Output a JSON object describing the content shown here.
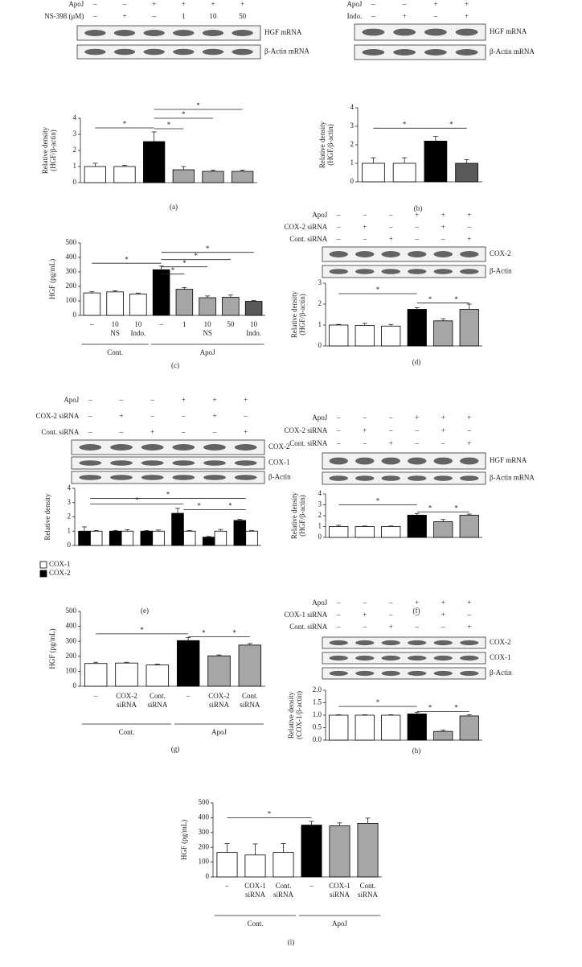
{
  "chart_data": [
    {
      "type": "bar",
      "panel": "(a)",
      "rows": [
        {
          "label": "ApoJ",
          "values": [
            "–",
            "–",
            "+",
            "+",
            "+",
            "+"
          ]
        },
        {
          "label": "NS-398 (μM)",
          "values": [
            "–",
            "+",
            "–",
            "1",
            "10",
            "50"
          ]
        }
      ],
      "blots": [
        "HGF mRNA",
        "β-Actin mRNA"
      ],
      "ylabel": [
        "Relative density",
        "(HGF/β-actin)"
      ],
      "ylim": [
        0,
        4
      ],
      "yticks": [
        0,
        1,
        2,
        3,
        4
      ],
      "series": [
        {
          "values": [
            1.0,
            1.0,
            2.55,
            0.8,
            0.7,
            0.7
          ],
          "errors": [
            0.2,
            0.08,
            0.6,
            0.2,
            0.08,
            0.08
          ],
          "colors": [
            "#ffffff",
            "#ffffff",
            "#000000",
            "#a6a6a6",
            "#a6a6a6",
            "#a6a6a6"
          ]
        }
      ],
      "significance": [
        {
          "from": 0,
          "to": 2,
          "y": 3.4,
          "label": "*"
        },
        {
          "from": 2,
          "to": 3,
          "y": 3.35,
          "label": "*"
        },
        {
          "from": 2,
          "to": 4,
          "y": 4.0,
          "label": "*"
        },
        {
          "from": 2,
          "to": 5,
          "y": 4.55,
          "label": "*"
        }
      ]
    },
    {
      "type": "bar",
      "panel": "(b)",
      "rows": [
        {
          "label": "ApoJ",
          "values": [
            "–",
            "–",
            "+",
            "+"
          ]
        },
        {
          "label": "Indo.",
          "values": [
            "–",
            "+",
            "–",
            "+"
          ]
        }
      ],
      "blots": [
        "HGF mRNA",
        "β-Actin mRNA"
      ],
      "ylabel": [
        "Relative density",
        "(HGF/β-actin)"
      ],
      "ylim": [
        0,
        4
      ],
      "yticks": [
        0,
        1,
        2,
        3,
        4
      ],
      "series": [
        {
          "values": [
            1.0,
            1.0,
            2.2,
            1.0
          ],
          "errors": [
            0.3,
            0.3,
            0.25,
            0.2
          ],
          "colors": [
            "#ffffff",
            "#ffffff",
            "#000000",
            "#595959"
          ]
        }
      ],
      "significance": [
        {
          "from": 0,
          "to": 2,
          "y": 2.9,
          "label": "*"
        },
        {
          "from": 2,
          "to": 3,
          "y": 2.9,
          "label": "*"
        }
      ]
    },
    {
      "type": "bar",
      "panel": "(c)",
      "ylabel": [
        "HGF (pg/mL)"
      ],
      "ylim": [
        0,
        500
      ],
      "yticks": [
        0,
        100,
        200,
        300,
        400,
        500
      ],
      "categories": [
        [
          "–"
        ],
        [
          "10",
          "NS"
        ],
        [
          "10",
          "Indo."
        ],
        [
          "–"
        ],
        [
          "1"
        ],
        [
          "10",
          "NS"
        ],
        [
          "50"
        ],
        [
          "10",
          "Indo."
        ]
      ],
      "groups": [
        {
          "label": "Cont.",
          "from": 0,
          "to": 2
        },
        {
          "label": "ApoJ",
          "from": 3,
          "to": 7
        }
      ],
      "series": [
        {
          "values": [
            155,
            162,
            148,
            315,
            180,
            122,
            125,
            97
          ],
          "errors": [
            8,
            8,
            6,
            25,
            12,
            12,
            15,
            5
          ],
          "colors": [
            "#ffffff",
            "#ffffff",
            "#ffffff",
            "#000000",
            "#a6a6a6",
            "#a6a6a6",
            "#a6a6a6",
            "#595959"
          ]
        }
      ],
      "significance": [
        {
          "from": 0,
          "to": 3,
          "y": 360,
          "label": "*"
        },
        {
          "from": 3,
          "to": 4,
          "y": 285,
          "label": "*"
        },
        {
          "from": 3,
          "to": 5,
          "y": 335,
          "label": "*"
        },
        {
          "from": 3,
          "to": 6,
          "y": 385,
          "label": "*"
        },
        {
          "from": 3,
          "to": 7,
          "y": 435,
          "label": "*"
        }
      ]
    },
    {
      "type": "bar",
      "panel": "(d)",
      "rows": [
        {
          "label": "ApoJ",
          "values": [
            "–",
            "–",
            "–",
            "+",
            "+",
            "+"
          ]
        },
        {
          "label": "COX-2 siRNA",
          "values": [
            "–",
            "+",
            "–",
            "–",
            "+",
            "–"
          ]
        },
        {
          "label": "Cont. siRNA",
          "values": [
            "–",
            "–",
            "+",
            "–",
            "–",
            "+"
          ]
        }
      ],
      "blots": [
        "COX-2",
        "β-Actin"
      ],
      "ylabel": [
        "Relative density",
        "(HGF/β-actin)"
      ],
      "ylim": [
        0,
        3
      ],
      "yticks": [
        0,
        1,
        2,
        3
      ],
      "series": [
        {
          "values": [
            1.0,
            0.98,
            0.95,
            1.75,
            1.2,
            1.75
          ],
          "errors": [
            0.03,
            0.1,
            0.08,
            0.08,
            0.1,
            0.25
          ],
          "colors": [
            "#ffffff",
            "#ffffff",
            "#ffffff",
            "#000000",
            "#a6a6a6",
            "#a6a6a6"
          ]
        }
      ],
      "significance": [
        {
          "from": 0,
          "to": 3,
          "y": 2.5,
          "label": "*"
        },
        {
          "from": 3,
          "to": 4,
          "y": 2.05,
          "label": "*"
        },
        {
          "from": 4,
          "to": 5,
          "y": 2.05,
          "label": "*"
        }
      ]
    },
    {
      "type": "bar",
      "panel": "(e)",
      "rows": [
        {
          "label": "ApoJ",
          "values": [
            "–",
            "–",
            "–",
            "+",
            "+",
            "+"
          ]
        },
        {
          "label": "COX-2 siRNA",
          "values": [
            "–",
            "+",
            "–",
            "–",
            "+",
            "–"
          ]
        },
        {
          "label": "Cont. siRNA",
          "values": [
            "–",
            "–",
            "+",
            "–",
            "–",
            "+"
          ]
        }
      ],
      "blots": [
        "COX-2",
        "COX-1",
        "β-Actin"
      ],
      "ylabel": [
        "Relative density"
      ],
      "ylim": [
        0,
        4
      ],
      "yticks": [
        0,
        1,
        2,
        3,
        4
      ],
      "series": [
        {
          "name": "COX-1",
          "color": "#ffffff",
          "values": [
            1.0,
            1.0,
            1.0,
            1.0,
            1.0,
            1.0
          ],
          "errors": [
            0.05,
            0.1,
            0.08,
            0.05,
            0.12,
            0.05
          ]
        },
        {
          "name": "COX-2",
          "color": "#000000",
          "values": [
            1.0,
            1.0,
            1.0,
            2.25,
            0.58,
            1.75
          ],
          "errors": [
            0.3,
            0.05,
            0.05,
            0.35,
            0.05,
            0.08
          ]
        }
      ],
      "significance": [
        {
          "from": 0,
          "to": 3,
          "y": 2.9,
          "label": "*"
        },
        {
          "from": 0,
          "to": 5,
          "y": 3.3,
          "label": "*"
        },
        {
          "from": 3,
          "to": 4,
          "y": 2.5,
          "label": "*"
        },
        {
          "from": 4,
          "to": 5,
          "y": 2.5,
          "label": "*"
        }
      ]
    },
    {
      "type": "bar",
      "panel": "(f)",
      "rows": [
        {
          "label": "ApoJ",
          "values": [
            "–",
            "–",
            "–",
            "+",
            "+",
            "+"
          ]
        },
        {
          "label": "COX-2 siRNA",
          "values": [
            "–",
            "+",
            "–",
            "–",
            "+",
            "–"
          ]
        },
        {
          "label": "Cont. siRNA",
          "values": [
            "–",
            "–",
            "+",
            "–",
            "–",
            "+"
          ]
        }
      ],
      "blots": [
        "HGF mRNA",
        "β-Actin mRNA"
      ],
      "ylabel": [
        "Relative density",
        "(HGF/β-actin)"
      ],
      "ylim": [
        0,
        4
      ],
      "yticks": [
        0,
        1,
        2,
        3,
        4
      ],
      "series": [
        {
          "values": [
            1.0,
            1.0,
            1.0,
            2.05,
            1.45,
            2.05
          ],
          "errors": [
            0.12,
            0.05,
            0.05,
            0.15,
            0.2,
            0.1
          ],
          "colors": [
            "#ffffff",
            "#ffffff",
            "#ffffff",
            "#000000",
            "#a6a6a6",
            "#a6a6a6"
          ]
        }
      ],
      "significance": [
        {
          "from": 0,
          "to": 3,
          "y": 3.0,
          "label": "*"
        },
        {
          "from": 3,
          "to": 4,
          "y": 2.35,
          "label": "*"
        },
        {
          "from": 4,
          "to": 5,
          "y": 2.35,
          "label": "*"
        }
      ]
    },
    {
      "type": "bar",
      "panel": "(g)",
      "ylabel": [
        "HGF (pg/mL)"
      ],
      "ylim": [
        0,
        500
      ],
      "yticks": [
        0,
        100,
        200,
        300,
        400,
        500
      ],
      "categories": [
        [
          "–"
        ],
        [
          "COX-2",
          "siRNA"
        ],
        [
          "Cont.",
          "siRNA"
        ],
        [
          "–"
        ],
        [
          "COX-2",
          "siRNA"
        ],
        [
          "Cont.",
          "siRNA"
        ]
      ],
      "groups": [
        {
          "label": "Cont.",
          "from": 0,
          "to": 2
        },
        {
          "label": "ApoJ",
          "from": 3,
          "to": 5
        }
      ],
      "series": [
        {
          "values": [
            152,
            155,
            142,
            305,
            203,
            275
          ],
          "errors": [
            8,
            5,
            5,
            20,
            6,
            10
          ],
          "colors": [
            "#ffffff",
            "#ffffff",
            "#ffffff",
            "#000000",
            "#a6a6a6",
            "#a6a6a6"
          ]
        }
      ],
      "significance": [
        {
          "from": 0,
          "to": 3,
          "y": 350,
          "label": "*"
        },
        {
          "from": 3,
          "to": 4,
          "y": 330,
          "label": "*"
        },
        {
          "from": 4,
          "to": 5,
          "y": 330,
          "label": "*"
        }
      ]
    },
    {
      "type": "bar",
      "panel": "(h)",
      "rows": [
        {
          "label": "ApoJ",
          "values": [
            "–",
            "–",
            "–",
            "+",
            "+",
            "+"
          ]
        },
        {
          "label": "COX-1 siRNA",
          "values": [
            "–",
            "+",
            "–",
            "–",
            "+",
            "–"
          ]
        },
        {
          "label": "Cont. siRNA",
          "values": [
            "–",
            "–",
            "+",
            "–",
            "–",
            "+"
          ]
        }
      ],
      "blots": [
        "COX-2",
        "COX-1",
        "β-Actin"
      ],
      "ylabel": [
        "Relative density",
        "(COX-1/β-actin)"
      ],
      "ylim": [
        0,
        2
      ],
      "yticks": [
        {
          "value": 0,
          "label": "0.0"
        },
        {
          "value": 0.5,
          "label": "0.5"
        },
        {
          "value": 1,
          "label": "1.0"
        },
        {
          "value": 1.5,
          "label": "1.5"
        },
        {
          "value": 2,
          "label": "2.0"
        }
      ],
      "series": [
        {
          "values": [
            1.0,
            1.0,
            1.0,
            1.05,
            0.35,
            0.97
          ],
          "errors": [
            0.02,
            0.02,
            0.02,
            0.07,
            0.05,
            0.05
          ],
          "colors": [
            "#ffffff",
            "#ffffff",
            "#ffffff",
            "#000000",
            "#a6a6a6",
            "#a6a6a6"
          ]
        }
      ],
      "significance": [
        {
          "from": 0,
          "to": 3,
          "y": 1.35,
          "label": "*"
        },
        {
          "from": 3,
          "to": 4,
          "y": 1.15,
          "label": "*"
        },
        {
          "from": 4,
          "to": 5,
          "y": 1.15,
          "label": "*"
        }
      ]
    },
    {
      "type": "bar",
      "panel": "(i)",
      "ylabel": [
        "HGF (pg/mL)"
      ],
      "ylim": [
        0,
        500
      ],
      "yticks": [
        0,
        100,
        200,
        300,
        400,
        500
      ],
      "categories": [
        [
          "–"
        ],
        [
          "COX-1",
          "siRNA"
        ],
        [
          "Cont.",
          "siRNA"
        ],
        [
          "–"
        ],
        [
          "COX-1",
          "siRNA"
        ],
        [
          "Cont.",
          "siRNA"
        ]
      ],
      "groups": [
        {
          "label": "Cont.",
          "from": 0,
          "to": 2
        },
        {
          "label": "ApoJ",
          "from": 3,
          "to": 5
        }
      ],
      "series": [
        {
          "values": [
            165,
            148,
            165,
            350,
            345,
            362
          ],
          "errors": [
            60,
            75,
            60,
            25,
            20,
            35
          ],
          "colors": [
            "#ffffff",
            "#ffffff",
            "#ffffff",
            "#000000",
            "#a6a6a6",
            "#a6a6a6"
          ]
        }
      ],
      "significance": [
        {
          "from": 0,
          "to": 3,
          "y": 400,
          "label": "*"
        }
      ]
    }
  ]
}
